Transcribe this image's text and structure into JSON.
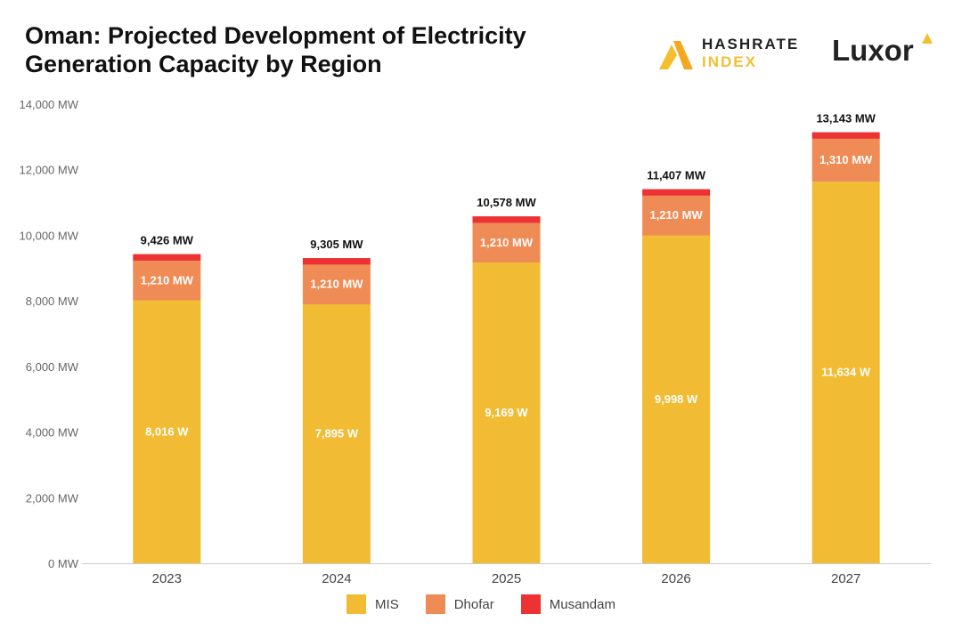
{
  "title": "Oman: Projected Development of Electricity Generation Capacity by Region",
  "brand": {
    "hashrate_line1": "HASHRATE",
    "hashrate_line2": "INDEX",
    "luxor": "Luxor",
    "accent": "#F5BE2E"
  },
  "chart_data": {
    "type": "bar",
    "stacked": true,
    "categories": [
      "2023",
      "2024",
      "2025",
      "2026",
      "2027"
    ],
    "series": [
      {
        "name": "MIS",
        "color": "#F1BB33",
        "values": [
          8016,
          7895,
          9169,
          9998,
          11634
        ],
        "labels": [
          "8,016 W",
          "7,895 W",
          "9,169 W",
          "9,998 W",
          "11,634 W"
        ]
      },
      {
        "name": "Dhofar",
        "color": "#EF8B55",
        "values": [
          1210,
          1210,
          1210,
          1210,
          1310
        ],
        "labels": [
          "1,210 MW",
          "1,210 MW",
          "1,210 MW",
          "1,210 MW",
          "1,310 MW"
        ]
      },
      {
        "name": "Musandam",
        "color": "#EC3232",
        "values": [
          200,
          200,
          199,
          199,
          199
        ]
      }
    ],
    "totals": [
      9426,
      9305,
      10578,
      11407,
      13143
    ],
    "total_labels": [
      "9,426 MW",
      "9,305 MW",
      "10,578 MW",
      "11,407 MW",
      "13,143 MW"
    ],
    "yticks": [
      0,
      2000,
      4000,
      6000,
      8000,
      10000,
      12000,
      14000
    ],
    "ytick_labels": [
      "0 MW",
      "2,000 MW",
      "4,000 MW",
      "6,000 MW",
      "8,000 MW",
      "10,000 MW",
      "12,000 MW",
      "14,000 MW"
    ],
    "ylim": [
      0,
      14000
    ],
    "grid": false,
    "legend_position": "bottom"
  }
}
